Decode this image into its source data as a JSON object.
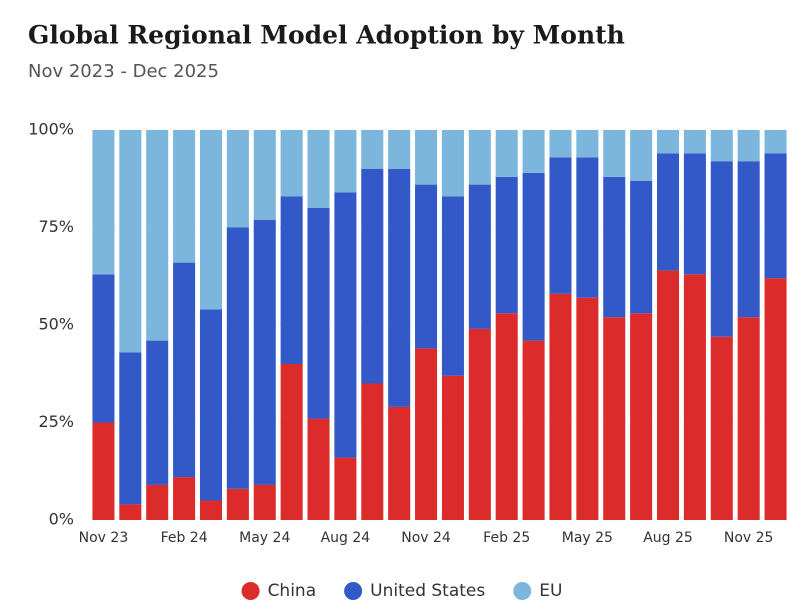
{
  "chart_data": {
    "type": "stacked-bar-100",
    "title": "Global Regional Model Adoption by Month",
    "subtitle": "Nov 2023 - Dec 2025",
    "categories": [
      "Nov 23",
      null,
      null,
      "Feb 24",
      null,
      null,
      "May 24",
      null,
      null,
      "Aug 24",
      null,
      null,
      "Nov 24",
      null,
      null,
      "Feb 25",
      null,
      null,
      "May 25",
      null,
      null,
      "Aug 25",
      null,
      null,
      "Nov 25",
      null
    ],
    "series": [
      {
        "name": "China",
        "color": "#dc2b2b",
        "values": [
          25,
          4,
          9,
          11,
          5,
          8,
          9,
          40,
          26,
          16,
          35,
          29,
          44,
          37,
          49,
          53,
          46,
          58,
          57,
          52,
          53,
          64,
          63,
          47,
          52,
          62
        ]
      },
      {
        "name": "United States",
        "color": "#3358c8",
        "values": [
          38,
          39,
          37,
          55,
          49,
          67,
          68,
          43,
          54,
          68,
          55,
          61,
          42,
          46,
          37,
          35,
          43,
          35,
          36,
          36,
          34,
          30,
          31,
          45,
          40,
          32
        ]
      },
      {
        "name": "EU",
        "color": "#7cb6dd",
        "values": [
          37,
          57,
          54,
          34,
          46,
          25,
          23,
          17,
          20,
          16,
          10,
          10,
          14,
          17,
          14,
          12,
          11,
          7,
          7,
          12,
          13,
          6,
          6,
          8,
          8,
          6
        ]
      }
    ],
    "ylim": [
      0,
      100
    ],
    "yticks": [
      {
        "value": 0,
        "label": "0%"
      },
      {
        "value": 25,
        "label": "25%"
      },
      {
        "value": 50,
        "label": "50%"
      },
      {
        "value": 75,
        "label": "75%"
      },
      {
        "value": 100,
        "label": "100%"
      }
    ],
    "grid": true,
    "legend": "bottom"
  }
}
